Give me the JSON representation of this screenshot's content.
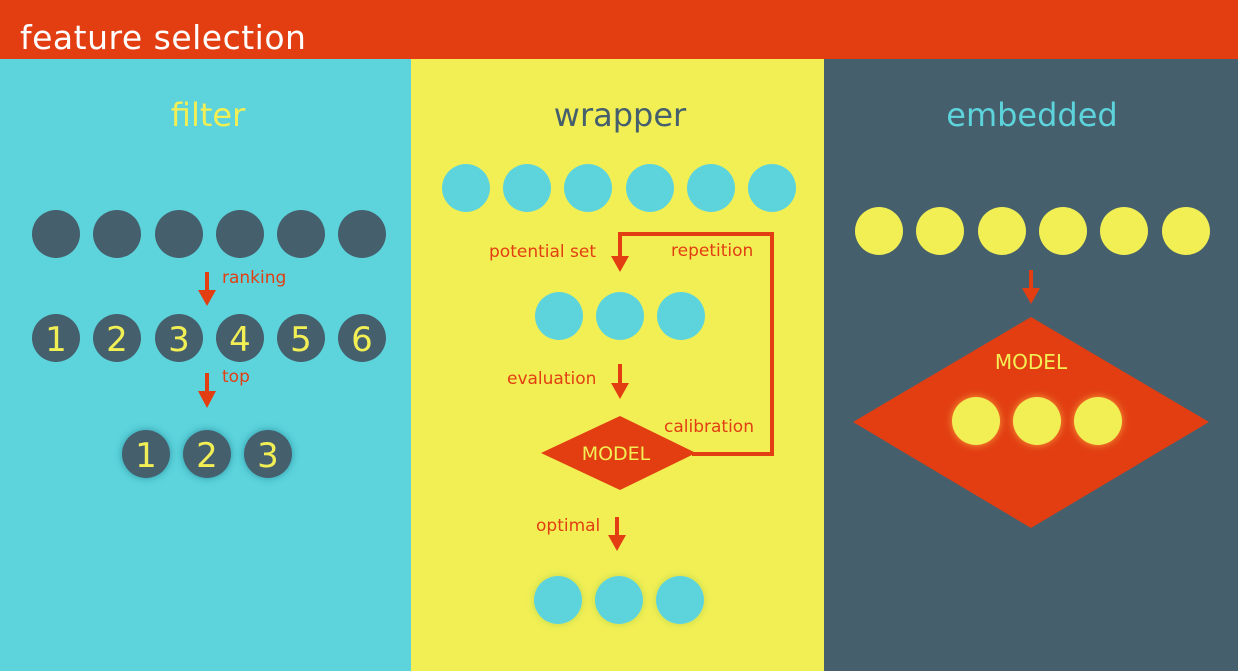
{
  "title": "feature selection",
  "colors": {
    "header": "#e23e12",
    "filter_bg": "#5dd4dc",
    "wrapper_bg": "#f2ef55",
    "embedded_bg": "#455f6d",
    "dark_circle": "#455f6d",
    "cyan_circle": "#5dd4dc",
    "yellow_circle": "#f2ef55",
    "accent": "#e23e12"
  },
  "filter": {
    "heading": "filter",
    "step1_label": "ranking",
    "ranks": [
      "1",
      "2",
      "3",
      "4",
      "5",
      "6"
    ],
    "step2_label": "top",
    "top": [
      "1",
      "2",
      "3"
    ]
  },
  "wrapper": {
    "heading": "wrapper",
    "potential_set_label": "potential set",
    "repetition_label": "repetition",
    "evaluation_label": "evaluation",
    "calibration_label": "calibration",
    "model_label": "MODEL",
    "optimal_label": "optimal"
  },
  "embedded": {
    "heading": "embedded",
    "model_label": "MODEL"
  }
}
